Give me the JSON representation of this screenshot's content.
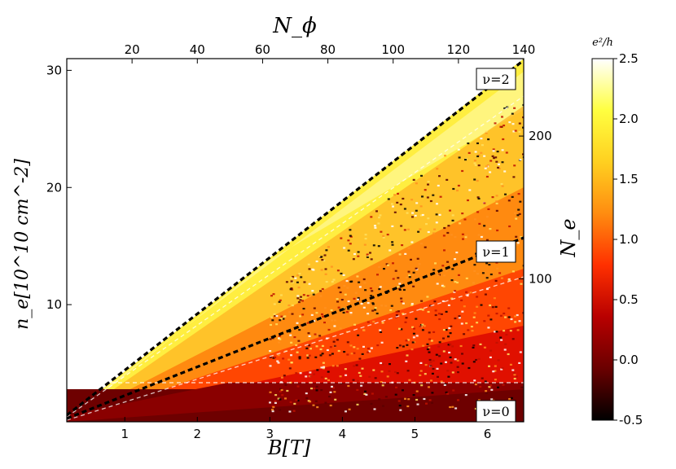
{
  "chart_data": {
    "type": "heatmap",
    "x_bottom": {
      "label": "B[T]",
      "ticks": [
        1,
        2,
        3,
        4,
        5,
        6
      ],
      "range": [
        0.2,
        6.5
      ]
    },
    "x_top": {
      "label": "N_ϕ",
      "ticks": [
        20,
        40,
        60,
        80,
        100,
        120,
        140
      ],
      "range": [
        0,
        140
      ]
    },
    "y_left": {
      "label": "n_e[10^10 cm^-2]",
      "ticks": [
        10,
        20,
        30
      ],
      "range": [
        0,
        31
      ]
    },
    "y_right": {
      "label": "N_e",
      "ticks": [
        100,
        200
      ]
    },
    "colorbar": {
      "title": "e²/h",
      "range": [
        -0.5,
        2.5
      ],
      "ticks": [
        "-0.5",
        "0.0",
        "0.5",
        "1.0",
        "1.5",
        "2.0",
        "2.5"
      ],
      "colors": [
        "#000000",
        "#6a0000",
        "#b80000",
        "#ff3000",
        "#ff8c10",
        "#ffd020",
        "#ffff40",
        "#ffffff"
      ]
    },
    "plateaus": [
      {
        "label": "ν=2",
        "value": 2.0
      },
      {
        "label": "ν=1",
        "value": 1.0
      },
      {
        "label": "ν=0",
        "value": 0.0
      }
    ],
    "filling_lines": [
      {
        "nu": 2,
        "style": "black-dashed"
      },
      {
        "nu": 1,
        "style": "black-dashed"
      }
    ]
  }
}
